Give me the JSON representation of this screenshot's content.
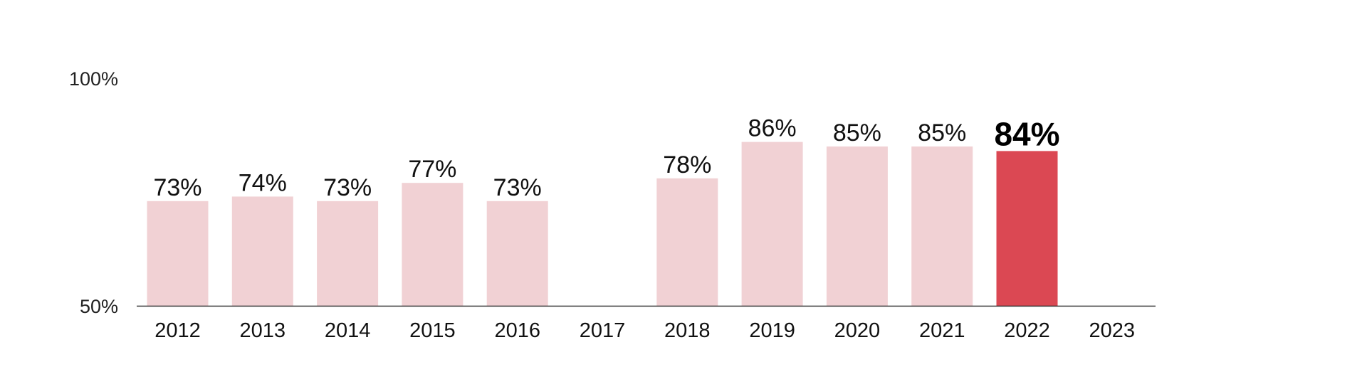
{
  "chart_data": {
    "type": "bar",
    "categories": [
      "2012",
      "2013",
      "2014",
      "2015",
      "2016",
      "2017",
      "2018",
      "2019",
      "2020",
      "2021",
      "2022",
      "2023"
    ],
    "values": [
      73,
      74,
      73,
      77,
      73,
      null,
      78,
      86,
      85,
      85,
      84,
      null
    ],
    "value_labels": [
      "73%",
      "74%",
      "73%",
      "77%",
      "73%",
      "",
      "78%",
      "86%",
      "85%",
      "85%",
      "84%",
      ""
    ],
    "highlight_category": "2022",
    "y_ticks": [
      {
        "value": 50,
        "label": "50%"
      },
      {
        "value": 100,
        "label": "100%"
      }
    ],
    "ylim": [
      50,
      100
    ],
    "grid": false,
    "colors": {
      "bar": "#f1d1d4",
      "highlight": "#db4853",
      "axis": "#333333"
    }
  }
}
